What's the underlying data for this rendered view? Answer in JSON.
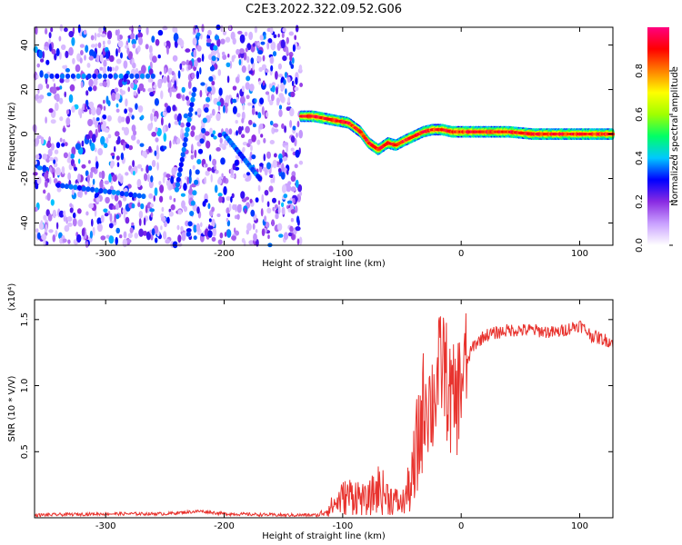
{
  "figure_title": "C2E3.2022.322.09.52.G06",
  "chart_data": [
    {
      "type": "heatmap",
      "title": "C2E3.2022.322.09.52.G06",
      "xlabel": "Height of straight line (km)",
      "ylabel": "Frequency (Hz)",
      "xlim": [
        -360,
        128
      ],
      "ylim": [
        -50,
        48
      ],
      "xticks": [
        -300,
        -200,
        -100,
        0,
        100
      ],
      "xtick_labels": [
        "-300",
        "-200",
        "-100",
        "0",
        "100"
      ],
      "yticks": [
        -40,
        -20,
        0,
        20,
        40
      ],
      "ytick_labels": [
        "-40",
        "-20",
        "0",
        "20",
        "40"
      ],
      "noise_region_x": [
        -360,
        -135
      ],
      "signal_trace": {
        "x": [
          -135,
          -125,
          -115,
          -105,
          -95,
          -85,
          -78,
          -70,
          -62,
          -55,
          -48,
          -40,
          -32,
          -24,
          -16,
          -8,
          0,
          20,
          40,
          60,
          80,
          100,
          120,
          128
        ],
        "y": [
          8,
          8,
          7,
          6,
          5,
          1,
          -4,
          -7,
          -4,
          -5,
          -3,
          -1,
          1,
          2,
          2,
          1,
          1,
          1,
          1,
          0,
          0,
          0,
          0,
          0
        ]
      },
      "colorbar": {
        "label": "Normalized spectral amplitude",
        "range": [
          0,
          1
        ],
        "ticks": [
          0.0,
          0.2,
          0.4,
          0.6,
          0.8
        ],
        "tick_labels": [
          "0.0",
          "0.2",
          "0.4",
          "0.6",
          "0.8"
        ],
        "colors": [
          "#ffffff",
          "#c9a0ff",
          "#8a2be2",
          "#0000ff",
          "#00c8ff",
          "#00ff66",
          "#a0ff00",
          "#ffff00",
          "#ff8000",
          "#ff0000",
          "#ff0080"
        ]
      }
    },
    {
      "type": "line",
      "title": "",
      "xlabel": "Height of straight line (km)",
      "ylabel": "SNR (10 * V/V)",
      "multiplier_label": "(x10⁴)",
      "xlim": [
        -360,
        128
      ],
      "ylim": [
        0,
        1.65
      ],
      "xticks": [
        -300,
        -200,
        -100,
        0,
        100
      ],
      "xtick_labels": [
        "-300",
        "-200",
        "-100",
        "0",
        "100"
      ],
      "yticks": [
        0.5,
        1.0,
        1.5
      ],
      "ytick_labels": [
        "0.5",
        "1.0",
        "1.5"
      ],
      "line_color": "#e8332e",
      "series": [
        {
          "name": "SNR",
          "x": [
            -360,
            -300,
            -250,
            -220,
            -200,
            -150,
            -120,
            -110,
            -100,
            -90,
            -80,
            -70,
            -60,
            -50,
            -40,
            -35,
            -30,
            -25,
            -20,
            -15,
            -10,
            -5,
            0,
            10,
            20,
            40,
            60,
            80,
            100,
            110,
            120,
            128
          ],
          "y": [
            0.02,
            0.03,
            0.03,
            0.05,
            0.03,
            0.02,
            0.02,
            0.08,
            0.15,
            0.18,
            0.12,
            0.22,
            0.15,
            0.1,
            0.3,
            0.65,
            0.95,
            0.85,
            1.05,
            1.2,
            0.9,
            0.85,
            1.05,
            1.3,
            1.38,
            1.42,
            1.42,
            1.4,
            1.46,
            1.38,
            1.35,
            1.33
          ]
        }
      ]
    }
  ]
}
